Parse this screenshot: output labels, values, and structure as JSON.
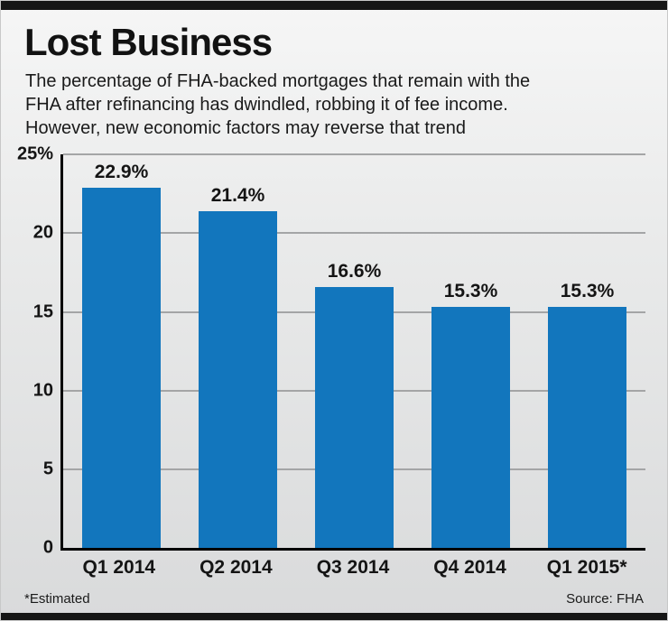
{
  "page": {
    "title": "Lost Business",
    "subtitle_lines": [
      "The percentage of FHA-backed mortgages that remain with the",
      "FHA after refinancing has dwindled, robbing it of fee income.",
      "However, new economic factors may reverse that trend"
    ],
    "footnote": "*Estimated",
    "source": "Source: FHA"
  },
  "chart_data": {
    "type": "bar",
    "title": "Lost Business",
    "categories": [
      "Q1 2014",
      "Q2 2014",
      "Q3 2014",
      "Q4 2014",
      "Q1 2015*"
    ],
    "values": [
      22.9,
      21.4,
      16.6,
      15.3,
      15.3
    ],
    "value_labels": [
      "22.9%",
      "21.4%",
      "16.6%",
      "15.3%",
      "15.3%"
    ],
    "xlabel": "",
    "ylabel": "",
    "ylim": [
      0,
      25
    ],
    "yticks": [
      0,
      5,
      10,
      15,
      20,
      25
    ],
    "ytick_labels": [
      "0",
      "5",
      "10",
      "15",
      "20",
      "25%"
    ],
    "grid": true,
    "legend_position": "none",
    "colors": {
      "bar": "#1276bd",
      "gridline": "#a4a5a6",
      "axis": "#000000",
      "background": "#e9eaea",
      "strip": "#161616"
    }
  }
}
